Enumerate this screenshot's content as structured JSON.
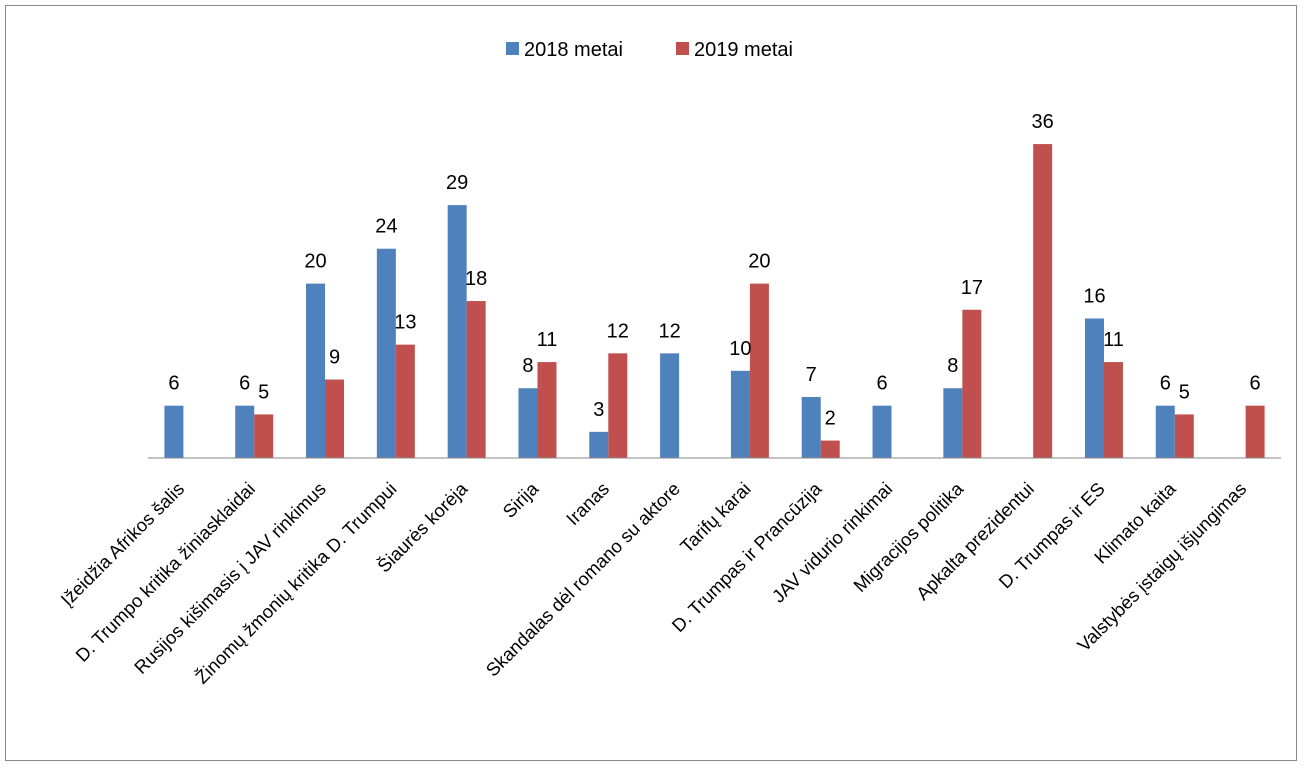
{
  "chart_data": {
    "type": "bar",
    "title": "",
    "xlabel": "",
    "ylabel": "",
    "ylim": [
      0,
      36
    ],
    "grid": false,
    "legend_position": "top-center",
    "categories": [
      "Įžeidžia Afrikos šalis",
      "D. Trumpo kritika žiniasklaidai",
      "Rusijos kišimasis į JAV rinkimus",
      "Žinomų žmonių kritika D. Trumpui",
      "Šiaurės  korėja",
      "Sirija",
      "Iranas",
      "Skandalas dėl romano su aktore",
      "Tarifų karai",
      "D. Trumpas ir Prancūzija",
      "JAV vidurio rinkimai",
      "Migracijos politika",
      "Apkalta prezidentui",
      "D. Trumpas ir ES",
      "Klimato kaita",
      "Valstybės įstaigų išjungimas"
    ],
    "series": [
      {
        "name": "2018 metai",
        "color": "#4f81bd",
        "values": [
          6,
          6,
          20,
          24,
          29,
          8,
          3,
          12,
          10,
          7,
          6,
          8,
          null,
          16,
          6,
          null
        ]
      },
      {
        "name": "2019 metai",
        "color": "#c0504d",
        "values": [
          null,
          5,
          9,
          13,
          18,
          11,
          12,
          null,
          20,
          2,
          null,
          17,
          36,
          11,
          5,
          6
        ]
      }
    ]
  }
}
